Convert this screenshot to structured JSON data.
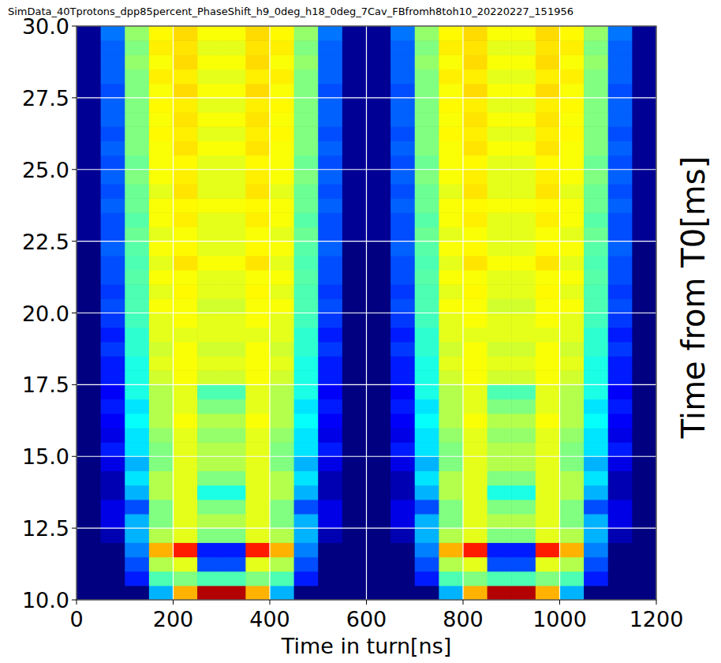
{
  "chart_data": {
    "type": "heatmap",
    "title": "SimData_40Tprotons_dpp85percent_PhaseShift_h9_0deg_h18_0deg_7Cav_FBfromh8toh10_20220227_151956",
    "x_label": "Time in turn[ns]",
    "y_label": "Time from T0[ms]",
    "xlim": [
      0,
      1200
    ],
    "ylim": [
      10,
      30
    ],
    "xticks": [
      0,
      200,
      400,
      600,
      800,
      1000,
      1200
    ],
    "yticks": [
      {
        "value": 10,
        "label": "10.0"
      },
      {
        "value": 12.5,
        "label": "12.5"
      },
      {
        "value": 15,
        "label": "15.0"
      },
      {
        "value": 17.5,
        "label": "17.5"
      },
      {
        "value": 20,
        "label": "20.0"
      },
      {
        "value": 22.5,
        "label": "22.5"
      },
      {
        "value": 25,
        "label": "25.0"
      },
      {
        "value": 27.5,
        "label": "27.5"
      },
      {
        "value": 30,
        "label": "30.0"
      }
    ],
    "grid": true,
    "color": "jet",
    "zlim": [
      0,
      1
    ],
    "x_bins": [
      0,
      50,
      100,
      150,
      200,
      250,
      300,
      350,
      400,
      450,
      500,
      550,
      600,
      650,
      700,
      750,
      800,
      850,
      900,
      950,
      1000,
      1050,
      1100,
      1150,
      1200
    ],
    "y_bins": [
      10,
      10.5,
      11,
      11.5,
      12,
      12.5,
      13,
      13.5,
      14,
      14.5,
      15,
      15.5,
      16,
      16.5,
      17,
      17.5,
      18,
      18.5,
      19,
      19.5,
      20,
      20.5,
      21,
      21.5,
      22,
      22.5,
      23,
      23.5,
      24,
      24.5,
      25,
      25.5,
      26,
      26.5,
      27,
      27.5,
      28,
      28.5,
      29,
      29.5,
      30
    ],
    "cells": [
      [
        0,
        0,
        0,
        0.3,
        0.7,
        0.95,
        0.95,
        0.7,
        0.3,
        0,
        0,
        0,
        0,
        0,
        0,
        0.3,
        0.7,
        0.95,
        0.95,
        0.7,
        0.3,
        0,
        0,
        0
      ],
      [
        0,
        0,
        0.15,
        0.45,
        0.5,
        0.45,
        0.45,
        0.5,
        0.45,
        0.15,
        0,
        0,
        0,
        0,
        0.15,
        0.45,
        0.5,
        0.45,
        0.45,
        0.5,
        0.45,
        0.15,
        0,
        0
      ],
      [
        0,
        0,
        0.2,
        0.55,
        0.6,
        0.2,
        0.2,
        0.6,
        0.55,
        0.2,
        0,
        0,
        0,
        0,
        0.2,
        0.55,
        0.6,
        0.2,
        0.2,
        0.6,
        0.55,
        0.2,
        0,
        0
      ],
      [
        0,
        0,
        0.25,
        0.7,
        0.85,
        0.15,
        0.15,
        0.85,
        0.7,
        0.25,
        0,
        0,
        0,
        0,
        0.25,
        0.7,
        0.85,
        0.15,
        0.15,
        0.85,
        0.7,
        0.25,
        0,
        0
      ],
      [
        0,
        0.05,
        0.3,
        0.55,
        0.6,
        0.5,
        0.5,
        0.6,
        0.55,
        0.3,
        0.05,
        0,
        0,
        0.05,
        0.3,
        0.55,
        0.6,
        0.5,
        0.5,
        0.6,
        0.55,
        0.3,
        0.05,
        0
      ],
      [
        0,
        0.1,
        0.3,
        0.5,
        0.6,
        0.55,
        0.55,
        0.6,
        0.5,
        0.3,
        0.1,
        0,
        0,
        0.1,
        0.3,
        0.5,
        0.6,
        0.55,
        0.55,
        0.6,
        0.5,
        0.3,
        0.1,
        0
      ],
      [
        0,
        0.1,
        0.2,
        0.5,
        0.6,
        0.5,
        0.5,
        0.6,
        0.5,
        0.2,
        0.1,
        0,
        0,
        0.1,
        0.2,
        0.5,
        0.6,
        0.5,
        0.5,
        0.6,
        0.5,
        0.2,
        0.1,
        0
      ],
      [
        0,
        0.05,
        0.3,
        0.55,
        0.6,
        0.4,
        0.4,
        0.6,
        0.55,
        0.3,
        0.05,
        0,
        0,
        0.05,
        0.3,
        0.55,
        0.6,
        0.4,
        0.4,
        0.6,
        0.55,
        0.3,
        0.05,
        0
      ],
      [
        0,
        0.05,
        0.35,
        0.55,
        0.6,
        0.5,
        0.5,
        0.6,
        0.55,
        0.35,
        0.05,
        0,
        0,
        0.05,
        0.35,
        0.55,
        0.6,
        0.5,
        0.5,
        0.6,
        0.55,
        0.35,
        0.05,
        0
      ],
      [
        0,
        0.1,
        0.3,
        0.5,
        0.6,
        0.55,
        0.55,
        0.6,
        0.5,
        0.3,
        0.1,
        0,
        0,
        0.1,
        0.3,
        0.5,
        0.6,
        0.55,
        0.55,
        0.6,
        0.5,
        0.3,
        0.1,
        0
      ],
      [
        0,
        0.15,
        0.35,
        0.5,
        0.6,
        0.55,
        0.55,
        0.6,
        0.5,
        0.35,
        0.15,
        0,
        0,
        0.15,
        0.35,
        0.5,
        0.6,
        0.55,
        0.55,
        0.6,
        0.5,
        0.35,
        0.15,
        0
      ],
      [
        0,
        0.1,
        0.35,
        0.52,
        0.6,
        0.52,
        0.52,
        0.6,
        0.52,
        0.35,
        0.1,
        0,
        0,
        0.1,
        0.35,
        0.52,
        0.6,
        0.52,
        0.52,
        0.6,
        0.52,
        0.35,
        0.1,
        0
      ],
      [
        0,
        0.12,
        0.38,
        0.55,
        0.62,
        0.55,
        0.55,
        0.62,
        0.55,
        0.38,
        0.12,
        0,
        0,
        0.12,
        0.38,
        0.55,
        0.62,
        0.55,
        0.55,
        0.62,
        0.55,
        0.38,
        0.12,
        0
      ],
      [
        0,
        0.15,
        0.35,
        0.55,
        0.6,
        0.5,
        0.5,
        0.6,
        0.55,
        0.35,
        0.15,
        0,
        0,
        0.15,
        0.35,
        0.55,
        0.6,
        0.5,
        0.5,
        0.6,
        0.55,
        0.35,
        0.15,
        0
      ],
      [
        0,
        0.12,
        0.4,
        0.55,
        0.6,
        0.45,
        0.45,
        0.6,
        0.55,
        0.4,
        0.12,
        0,
        0,
        0.12,
        0.4,
        0.55,
        0.6,
        0.45,
        0.45,
        0.6,
        0.55,
        0.4,
        0.12,
        0
      ],
      [
        0,
        0.15,
        0.4,
        0.58,
        0.62,
        0.58,
        0.58,
        0.62,
        0.58,
        0.4,
        0.15,
        0,
        0,
        0.15,
        0.4,
        0.58,
        0.62,
        0.58,
        0.58,
        0.62,
        0.58,
        0.4,
        0.15,
        0
      ],
      [
        0,
        0.15,
        0.4,
        0.6,
        0.62,
        0.6,
        0.6,
        0.62,
        0.6,
        0.4,
        0.15,
        0,
        0,
        0.15,
        0.4,
        0.6,
        0.62,
        0.6,
        0.6,
        0.62,
        0.6,
        0.4,
        0.15,
        0
      ],
      [
        0,
        0.18,
        0.42,
        0.58,
        0.62,
        0.58,
        0.58,
        0.62,
        0.58,
        0.42,
        0.18,
        0,
        0,
        0.18,
        0.42,
        0.58,
        0.62,
        0.58,
        0.58,
        0.62,
        0.58,
        0.42,
        0.18,
        0
      ],
      [
        0,
        0.15,
        0.42,
        0.6,
        0.6,
        0.6,
        0.6,
        0.6,
        0.6,
        0.42,
        0.15,
        0,
        0,
        0.15,
        0.42,
        0.6,
        0.6,
        0.6,
        0.6,
        0.6,
        0.6,
        0.42,
        0.15,
        0
      ],
      [
        0,
        0.18,
        0.44,
        0.6,
        0.62,
        0.6,
        0.6,
        0.62,
        0.6,
        0.44,
        0.18,
        0,
        0,
        0.18,
        0.44,
        0.6,
        0.62,
        0.6,
        0.6,
        0.62,
        0.6,
        0.44,
        0.18,
        0
      ],
      [
        0,
        0.2,
        0.45,
        0.62,
        0.62,
        0.58,
        0.58,
        0.62,
        0.62,
        0.45,
        0.2,
        0,
        0,
        0.2,
        0.45,
        0.62,
        0.62,
        0.58,
        0.58,
        0.62,
        0.62,
        0.45,
        0.2,
        0
      ],
      [
        0,
        0.18,
        0.45,
        0.6,
        0.63,
        0.6,
        0.6,
        0.63,
        0.6,
        0.45,
        0.18,
        0,
        0,
        0.18,
        0.45,
        0.6,
        0.63,
        0.6,
        0.6,
        0.63,
        0.6,
        0.45,
        0.18,
        0
      ],
      [
        0,
        0.2,
        0.46,
        0.62,
        0.62,
        0.6,
        0.6,
        0.62,
        0.62,
        0.46,
        0.2,
        0,
        0,
        0.2,
        0.46,
        0.62,
        0.62,
        0.6,
        0.6,
        0.62,
        0.62,
        0.46,
        0.2,
        0
      ],
      [
        0,
        0.2,
        0.45,
        0.6,
        0.65,
        0.62,
        0.62,
        0.65,
        0.6,
        0.45,
        0.2,
        0,
        0,
        0.2,
        0.45,
        0.6,
        0.65,
        0.62,
        0.62,
        0.65,
        0.6,
        0.45,
        0.2,
        0
      ],
      [
        0,
        0.22,
        0.46,
        0.62,
        0.63,
        0.6,
        0.6,
        0.63,
        0.62,
        0.46,
        0.22,
        0,
        0,
        0.22,
        0.46,
        0.62,
        0.63,
        0.6,
        0.6,
        0.63,
        0.62,
        0.46,
        0.22,
        0
      ],
      [
        0.02,
        0.2,
        0.48,
        0.6,
        0.62,
        0.6,
        0.6,
        0.62,
        0.6,
        0.48,
        0.2,
        0.02,
        0.02,
        0.2,
        0.48,
        0.6,
        0.62,
        0.6,
        0.6,
        0.62,
        0.6,
        0.48,
        0.2,
        0.02
      ],
      [
        0.02,
        0.2,
        0.46,
        0.62,
        0.64,
        0.6,
        0.6,
        0.64,
        0.62,
        0.46,
        0.2,
        0.02,
        0.02,
        0.2,
        0.46,
        0.62,
        0.64,
        0.6,
        0.6,
        0.64,
        0.62,
        0.46,
        0.2,
        0.02
      ],
      [
        0.02,
        0.22,
        0.48,
        0.62,
        0.63,
        0.62,
        0.62,
        0.63,
        0.62,
        0.48,
        0.22,
        0.02,
        0.02,
        0.22,
        0.48,
        0.62,
        0.63,
        0.62,
        0.62,
        0.63,
        0.62,
        0.48,
        0.22,
        0.02
      ],
      [
        0.02,
        0.2,
        0.48,
        0.6,
        0.65,
        0.6,
        0.6,
        0.65,
        0.6,
        0.48,
        0.2,
        0.02,
        0.02,
        0.2,
        0.48,
        0.6,
        0.65,
        0.6,
        0.6,
        0.65,
        0.6,
        0.48,
        0.2,
        0.02
      ],
      [
        0.02,
        0.22,
        0.5,
        0.62,
        0.64,
        0.6,
        0.6,
        0.64,
        0.62,
        0.5,
        0.22,
        0.02,
        0.02,
        0.22,
        0.5,
        0.62,
        0.64,
        0.6,
        0.6,
        0.64,
        0.62,
        0.5,
        0.22,
        0.02
      ],
      [
        0.02,
        0.2,
        0.48,
        0.62,
        0.63,
        0.6,
        0.6,
        0.63,
        0.62,
        0.48,
        0.2,
        0.02,
        0.02,
        0.2,
        0.48,
        0.62,
        0.63,
        0.6,
        0.6,
        0.63,
        0.62,
        0.48,
        0.2,
        0.02
      ],
      [
        0.02,
        0.22,
        0.5,
        0.62,
        0.65,
        0.62,
        0.62,
        0.65,
        0.62,
        0.5,
        0.22,
        0.02,
        0.02,
        0.22,
        0.5,
        0.62,
        0.65,
        0.62,
        0.62,
        0.65,
        0.62,
        0.5,
        0.22,
        0.02
      ],
      [
        0.02,
        0.2,
        0.5,
        0.63,
        0.64,
        0.6,
        0.6,
        0.64,
        0.63,
        0.5,
        0.2,
        0.02,
        0.02,
        0.2,
        0.5,
        0.63,
        0.64,
        0.6,
        0.6,
        0.64,
        0.63,
        0.5,
        0.2,
        0.02
      ],
      [
        0.02,
        0.22,
        0.5,
        0.62,
        0.65,
        0.62,
        0.62,
        0.65,
        0.62,
        0.5,
        0.22,
        0.02,
        0.02,
        0.22,
        0.5,
        0.62,
        0.65,
        0.62,
        0.62,
        0.65,
        0.62,
        0.5,
        0.22,
        0.02
      ],
      [
        0.02,
        0.22,
        0.5,
        0.63,
        0.64,
        0.6,
        0.6,
        0.64,
        0.63,
        0.5,
        0.22,
        0.02,
        0.02,
        0.22,
        0.5,
        0.63,
        0.64,
        0.6,
        0.6,
        0.64,
        0.63,
        0.5,
        0.22,
        0.02
      ],
      [
        0.02,
        0.2,
        0.5,
        0.62,
        0.66,
        0.62,
        0.62,
        0.66,
        0.62,
        0.5,
        0.2,
        0.02,
        0.02,
        0.2,
        0.5,
        0.62,
        0.66,
        0.62,
        0.62,
        0.66,
        0.62,
        0.5,
        0.2,
        0.02
      ],
      [
        0.02,
        0.22,
        0.5,
        0.64,
        0.64,
        0.6,
        0.6,
        0.64,
        0.64,
        0.5,
        0.22,
        0.02,
        0.02,
        0.22,
        0.5,
        0.64,
        0.64,
        0.6,
        0.6,
        0.64,
        0.64,
        0.5,
        0.22,
        0.02
      ],
      [
        0.02,
        0.22,
        0.52,
        0.62,
        0.66,
        0.62,
        0.62,
        0.66,
        0.62,
        0.52,
        0.22,
        0.02,
        0.02,
        0.22,
        0.52,
        0.62,
        0.66,
        0.62,
        0.62,
        0.66,
        0.62,
        0.52,
        0.22,
        0.02
      ],
      [
        0.02,
        0.22,
        0.5,
        0.64,
        0.65,
        0.6,
        0.6,
        0.65,
        0.64,
        0.5,
        0.22,
        0.02,
        0.02,
        0.22,
        0.5,
        0.64,
        0.65,
        0.6,
        0.6,
        0.65,
        0.64,
        0.5,
        0.22,
        0.02
      ],
      [
        0.02,
        0.24,
        0.52,
        0.63,
        0.66,
        0.62,
        0.62,
        0.66,
        0.63,
        0.52,
        0.24,
        0.02,
        0.02,
        0.24,
        0.52,
        0.63,
        0.66,
        0.62,
        0.62,
        0.66,
        0.63,
        0.52,
        0.24,
        0.02
      ]
    ]
  }
}
